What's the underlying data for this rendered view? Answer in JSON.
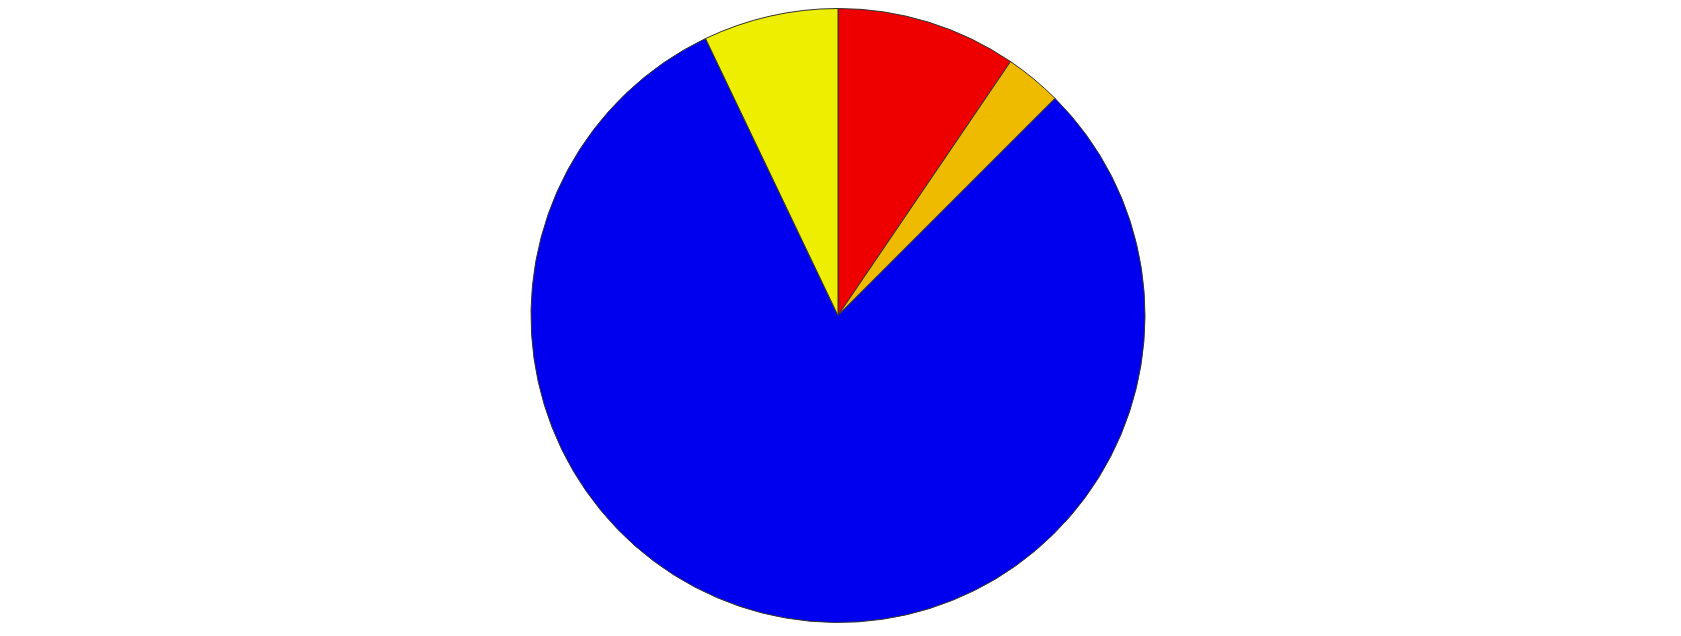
{
  "chart_data": {
    "type": "pie",
    "categories": [
      null,
      null,
      null,
      null
    ],
    "values": [
      9.5,
      3.0,
      80.4,
      7.1
    ],
    "colors": [
      "#ee0000",
      "#eebb00",
      "#0000ee",
      "#eeee00"
    ]
  }
}
